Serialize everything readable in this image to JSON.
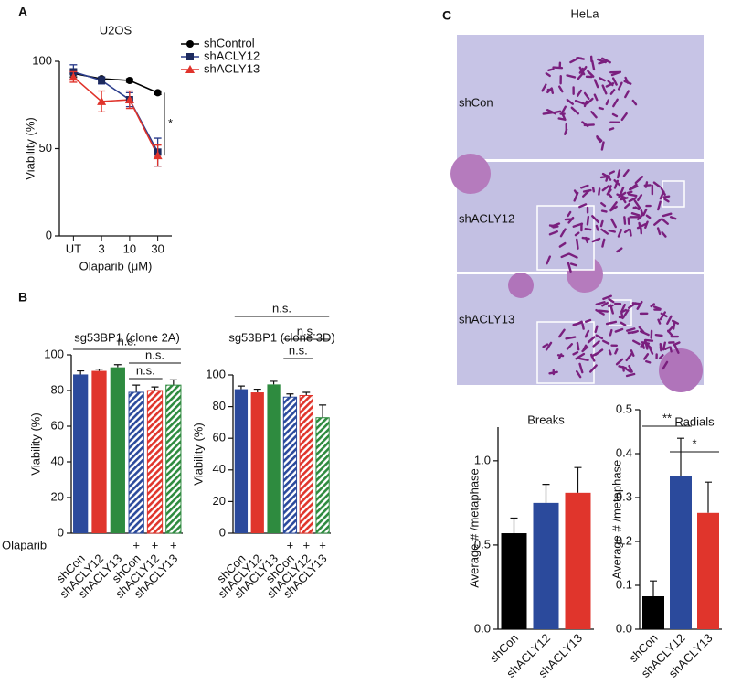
{
  "panel_labels": [
    "A",
    "B",
    "C"
  ],
  "micrographs": {
    "title": "HeLa",
    "labels": [
      "shCon",
      "shACLY12",
      "shACLY13"
    ]
  },
  "chart_data": [
    {
      "type": "line",
      "title": "U2OS",
      "xlabel": "Olaparib (μM)",
      "ylabel": "Viability (%)",
      "categories": [
        "UT",
        "3",
        "10",
        "30"
      ],
      "series": [
        {
          "name": "shControl",
          "color": "#000000",
          "marker": "circle",
          "values": [
            93,
            90,
            89,
            82
          ],
          "errors": [
            2,
            1,
            1,
            1
          ]
        },
        {
          "name": "shACLY12",
          "color": "#2b3d8c",
          "marker": "square",
          "values": [
            94,
            89,
            78,
            48
          ],
          "errors": [
            4,
            2,
            4,
            8
          ]
        },
        {
          "name": "shACLY13",
          "color": "#e0332b",
          "marker": "triangle",
          "values": [
            91,
            77,
            78,
            46
          ],
          "errors": [
            3,
            6,
            5,
            6
          ]
        }
      ],
      "ylim": [
        0,
        100
      ],
      "yticks": [
        0,
        50,
        100
      ],
      "annotations": [
        "*"
      ]
    },
    {
      "type": "bar",
      "title": "sg53BP1 (clone 2A)",
      "ylabel": "Viability (%)",
      "categories": [
        "shCon",
        "shACLY12",
        "shACLY13",
        "shCon",
        "shACLY12",
        "shACLY13"
      ],
      "values": [
        89,
        91,
        93,
        79,
        80,
        83
      ],
      "errors": [
        2,
        1,
        1.5,
        4,
        2,
        3
      ],
      "colors": [
        "#2b4a9c",
        "#e0352c",
        "#2e8b3f",
        "#2b4a9c",
        "#e0352c",
        "#2e8b3f"
      ],
      "hatched": [
        false,
        false,
        false,
        true,
        true,
        true
      ],
      "treatment": {
        "label": "Olaparib",
        "marks": [
          null,
          null,
          null,
          "+",
          "+",
          "+"
        ]
      },
      "ylim": [
        0,
        100
      ],
      "yticks": [
        0,
        20,
        40,
        60,
        80,
        100
      ],
      "annotations": [
        "n.s.",
        "n.s.",
        "n.s."
      ]
    },
    {
      "type": "bar",
      "title": "sg53BP1 (clone 3D)",
      "ylabel": "Viability (%)",
      "categories": [
        "shCon",
        "shACLY12",
        "shACLY13",
        "shCon",
        "shACLY12",
        "shACLY13"
      ],
      "values": [
        91,
        89,
        94,
        86,
        87,
        73
      ],
      "errors": [
        2,
        2,
        2,
        2,
        2,
        8
      ],
      "colors": [
        "#2b4a9c",
        "#e0352c",
        "#2e8b3f",
        "#2b4a9c",
        "#e0352c",
        "#2e8b3f"
      ],
      "hatched": [
        false,
        false,
        false,
        true,
        true,
        true
      ],
      "treatment": {
        "marks": [
          null,
          null,
          null,
          "+",
          "+",
          "+"
        ]
      },
      "ylim": [
        0,
        100
      ],
      "yticks": [
        0,
        20,
        40,
        60,
        80,
        100
      ],
      "annotations": [
        "n.s.",
        "n.s.",
        "n.s."
      ]
    },
    {
      "type": "bar",
      "title": "Breaks",
      "ylabel": "Average # /metaphase",
      "categories": [
        "shCon",
        "shACLY12",
        "shACLY13"
      ],
      "values": [
        0.57,
        0.75,
        0.81
      ],
      "errors": [
        0.09,
        0.11,
        0.15
      ],
      "colors": [
        "#000000",
        "#2b4a9c",
        "#e0352c"
      ],
      "hatched": [
        false,
        false,
        false
      ],
      "ylim": [
        0,
        1.2
      ],
      "yticks": [
        {
          "value": 0,
          "label": "0.0"
        },
        {
          "value": 0.5,
          "label": "0.5"
        },
        {
          "value": 1,
          "label": "1.0"
        }
      ]
    },
    {
      "type": "bar",
      "title": "Radials",
      "ylabel": "Average # /metaphase",
      "categories": [
        "shCon",
        "shACLY12",
        "shACLY13"
      ],
      "values": [
        0.075,
        0.35,
        0.265
      ],
      "errors": [
        0.035,
        0.085,
        0.07
      ],
      "colors": [
        "#000000",
        "#2b4a9c",
        "#e0352c"
      ],
      "hatched": [
        false,
        false,
        false
      ],
      "ylim": [
        0,
        0.5
      ],
      "yticks": [
        {
          "value": 0,
          "label": "0.0"
        },
        {
          "value": 0.1,
          "label": "0.1"
        },
        {
          "value": 0.2,
          "label": "0.2"
        },
        {
          "value": 0.3,
          "label": "0.3"
        },
        {
          "value": 0.4,
          "label": "0.4"
        },
        {
          "value": 0.5,
          "label": "0.5"
        }
      ],
      "annotations": [
        "**",
        "*"
      ]
    }
  ]
}
